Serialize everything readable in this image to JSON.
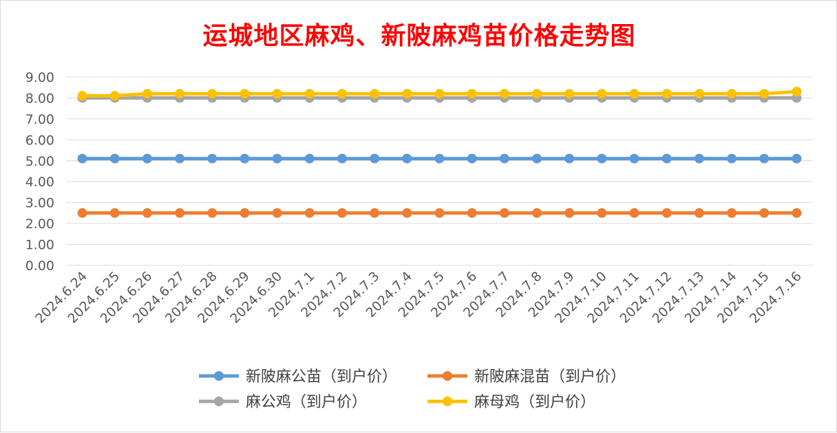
{
  "chart_data": {
    "type": "line",
    "title": "运城地区麻鸡、新陂麻鸡苗价格走势图",
    "xlabel": "",
    "ylabel": "",
    "ylim": [
      0,
      9
    ],
    "yticks": [
      "0.00",
      "1.00",
      "2.00",
      "3.00",
      "4.00",
      "5.00",
      "6.00",
      "7.00",
      "8.00",
      "9.00"
    ],
    "grid": true,
    "legend_position": "bottom",
    "categories": [
      "2024.6.24",
      "2024.6.25",
      "2024.6.26",
      "2024.6.27",
      "2024.6.28",
      "2024.6.29",
      "2024.6.30",
      "2024.7.1",
      "2024.7.2",
      "2024.7.3",
      "2024.7.4",
      "2024.7.5",
      "2024.7.6",
      "2024.7.7",
      "2024.7.8",
      "2024.7.9",
      "2024.7.10",
      "2024.7.11",
      "2024.7.12",
      "2024.7.13",
      "2024.7.14",
      "2024.7.15",
      "2024.7.16"
    ],
    "series": [
      {
        "name": "新陂麻公苗（到户价）",
        "color": "#5b9bd5",
        "values": [
          5.1,
          5.1,
          5.1,
          5.1,
          5.1,
          5.1,
          5.1,
          5.1,
          5.1,
          5.1,
          5.1,
          5.1,
          5.1,
          5.1,
          5.1,
          5.1,
          5.1,
          5.1,
          5.1,
          5.1,
          5.1,
          5.1,
          5.1
        ]
      },
      {
        "name": "新陂麻混苗（到户价）",
        "color": "#ed7d31",
        "values": [
          2.5,
          2.5,
          2.5,
          2.5,
          2.5,
          2.5,
          2.5,
          2.5,
          2.5,
          2.5,
          2.5,
          2.5,
          2.5,
          2.5,
          2.5,
          2.5,
          2.5,
          2.5,
          2.5,
          2.5,
          2.5,
          2.5,
          2.5
        ]
      },
      {
        "name": "麻公鸡（到户价）",
        "color": "#a5a5a5",
        "values": [
          8.0,
          8.0,
          8.0,
          8.0,
          8.0,
          8.0,
          8.0,
          8.0,
          8.0,
          8.0,
          8.0,
          8.0,
          8.0,
          8.0,
          8.0,
          8.0,
          8.0,
          8.0,
          8.0,
          8.0,
          8.0,
          8.0,
          8.0
        ]
      },
      {
        "name": "麻母鸡（到户价）",
        "color": "#ffc000",
        "values": [
          8.1,
          8.1,
          8.2,
          8.2,
          8.2,
          8.2,
          8.2,
          8.2,
          8.2,
          8.2,
          8.2,
          8.2,
          8.2,
          8.2,
          8.2,
          8.2,
          8.2,
          8.2,
          8.2,
          8.2,
          8.2,
          8.2,
          8.3
        ]
      }
    ]
  }
}
